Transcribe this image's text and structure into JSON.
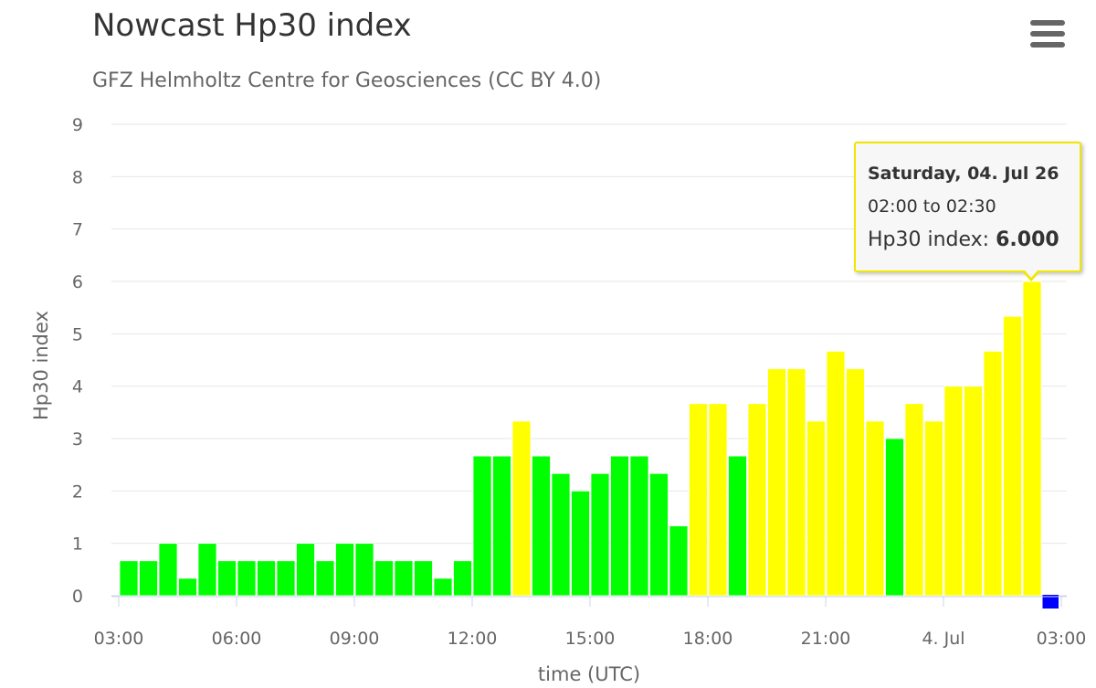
{
  "header": {
    "title": "Nowcast Hp30 index",
    "subtitle": "GFZ Helmholtz Centre for Geosciences (CC BY 4.0)"
  },
  "menu_icon": "hamburger-menu-icon",
  "tooltip": {
    "date": "Saturday, 04. Jul 26",
    "range": "02:00 to 02:30",
    "label": "Hp30 index: ",
    "value": "6.000"
  },
  "colors": {
    "green": "#00ff00",
    "yellow": "#ffff00",
    "blue": "#0000ff",
    "tooltip_border": "#f0e600"
  },
  "chart_data": {
    "type": "bar",
    "xlabel": "time (UTC)",
    "ylabel": "Hp30 index",
    "ylim": [
      0,
      9
    ],
    "yticks": [
      0,
      1,
      2,
      3,
      4,
      5,
      6,
      7,
      8,
      9
    ],
    "xticks": [
      "03:00",
      "06:00",
      "09:00",
      "12:00",
      "15:00",
      "18:00",
      "21:00",
      "4. Jul",
      "03:00"
    ],
    "grid": true,
    "interval_minutes": 30,
    "start": "03:00",
    "values": [
      0.667,
      0.667,
      1.0,
      0.333,
      1.0,
      0.667,
      0.667,
      0.667,
      0.667,
      1.0,
      0.667,
      1.0,
      1.0,
      0.667,
      0.667,
      0.667,
      0.333,
      0.667,
      2.667,
      2.667,
      3.333,
      2.667,
      2.333,
      2.0,
      2.333,
      2.667,
      2.667,
      2.333,
      1.333,
      3.667,
      3.667,
      2.667,
      3.667,
      4.333,
      4.333,
      3.333,
      4.667,
      4.333,
      3.333,
      3.0,
      3.667,
      3.333,
      4.0,
      4.0,
      4.667,
      5.333,
      6.0,
      0
    ],
    "colors": [
      "green",
      "green",
      "green",
      "green",
      "green",
      "green",
      "green",
      "green",
      "green",
      "green",
      "green",
      "green",
      "green",
      "green",
      "green",
      "green",
      "green",
      "green",
      "green",
      "green",
      "yellow",
      "green",
      "green",
      "green",
      "green",
      "green",
      "green",
      "green",
      "green",
      "yellow",
      "yellow",
      "green",
      "yellow",
      "yellow",
      "yellow",
      "yellow",
      "yellow",
      "yellow",
      "yellow",
      "green",
      "yellow",
      "yellow",
      "yellow",
      "yellow",
      "yellow",
      "yellow",
      "yellow",
      "blue"
    ]
  }
}
